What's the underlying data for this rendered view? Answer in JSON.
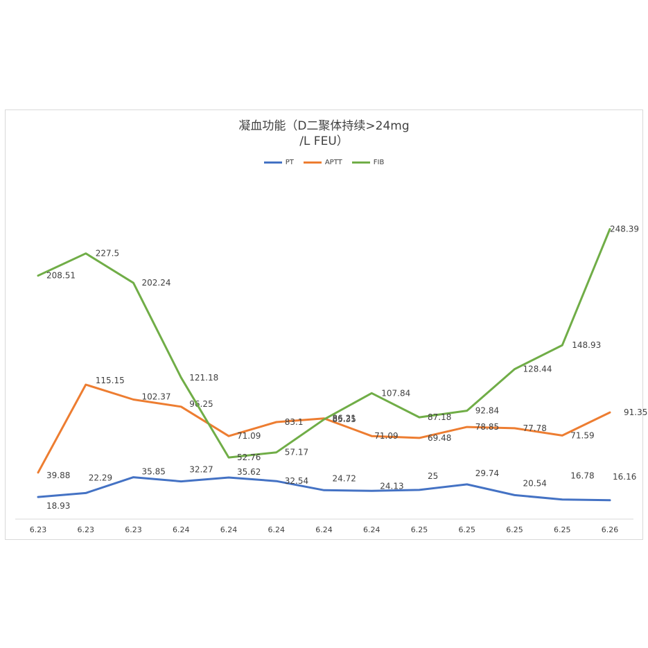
{
  "chart_data": {
    "type": "line",
    "title": "凝血功能（D二聚体持续>24mg",
    "title_line2": "/L FEU）",
    "categories": [
      "6.23",
      "6.23",
      "6.23",
      "6.24",
      "6.24",
      "6.24",
      "6.24",
      "6.24",
      "6.25",
      "6.25",
      "6.25",
      "6.25",
      "6.26"
    ],
    "series": [
      {
        "name": "PT",
        "color": "#4472c4",
        "values": [
          18.93,
          22.29,
          35.85,
          32.27,
          35.62,
          32.54,
          24.72,
          24.13,
          25,
          29.74,
          20.54,
          16.78,
          16.16
        ]
      },
      {
        "name": "APTT",
        "color": "#ed7d31",
        "values": [
          39.88,
          115.15,
          102.37,
          96.25,
          71.09,
          83.1,
          86.21,
          71.09,
          69.48,
          78.85,
          77.78,
          71.59,
          91.35
        ]
      },
      {
        "name": "FIB",
        "color": "#70ad47",
        "values": [
          208.51,
          227.5,
          202.24,
          121.18,
          52.76,
          57.17,
          85.35,
          107.84,
          87.18,
          92.84,
          128.44,
          148.93,
          248.39
        ]
      }
    ],
    "xlabel": "",
    "ylabel": "",
    "ylim": [
      0,
      260
    ],
    "grid": false,
    "legend_position": "top"
  }
}
